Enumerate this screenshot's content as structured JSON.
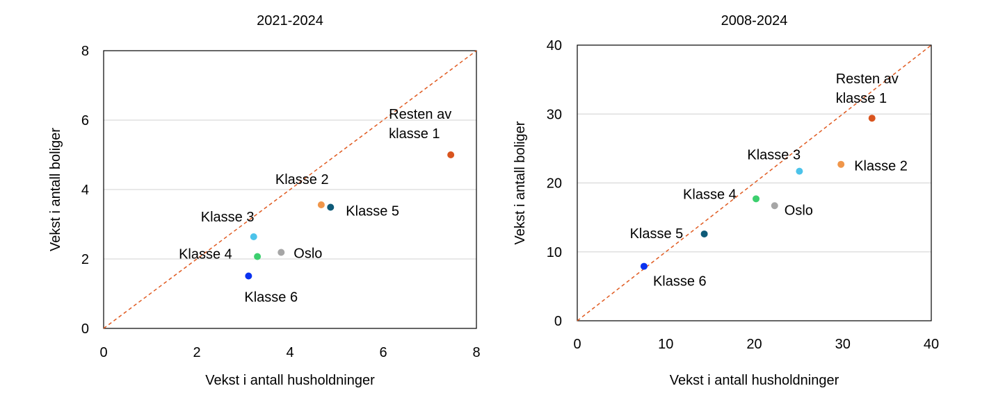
{
  "chart_data": [
    {
      "type": "scatter",
      "title": "2021-2024",
      "xlabel": "Vekst i antall husholdninger",
      "ylabel": "Vekst i antall boliger",
      "xlim": [
        0,
        8
      ],
      "ylim": [
        0,
        8
      ],
      "xticks": [
        0,
        2,
        4,
        6,
        8
      ],
      "yticks": [
        0,
        2,
        4,
        6,
        8
      ],
      "grid": "horizontal",
      "reference_line": "45-degree dashed (y = x)",
      "points": [
        {
          "label": "Resten av klasse 1",
          "label_lines": [
            "Resten av",
            "klasse 1"
          ],
          "x": 7.45,
          "y": 5.0,
          "color": "#d9541e",
          "label_pos": "above-left"
        },
        {
          "label": "Klasse 2",
          "label_lines": [
            "Klasse 2"
          ],
          "x": 4.67,
          "y": 3.56,
          "color": "#f0964a",
          "label_pos": "above-left"
        },
        {
          "label": "Klasse 5",
          "label_lines": [
            "Klasse 5"
          ],
          "x": 4.87,
          "y": 3.49,
          "color": "#0e5a78",
          "label_pos": "right"
        },
        {
          "label": "Klasse 3",
          "label_lines": [
            "Klasse 3"
          ],
          "x": 3.22,
          "y": 2.64,
          "color": "#4cc3ea",
          "label_pos": "above-left"
        },
        {
          "label": "Oslo",
          "label_lines": [
            "Oslo"
          ],
          "x": 3.81,
          "y": 2.19,
          "color": "#a6a6a6",
          "label_pos": "right"
        },
        {
          "label": "Klasse 4",
          "label_lines": [
            "Klasse 4"
          ],
          "x": 3.3,
          "y": 2.07,
          "color": "#3ccf6e",
          "label_pos": "left"
        },
        {
          "label": "Klasse 6",
          "label_lines": [
            "Klasse 6"
          ],
          "x": 3.11,
          "y": 1.51,
          "color": "#0a32f0",
          "label_pos": "below-right"
        }
      ]
    },
    {
      "type": "scatter",
      "title": "2008-2024",
      "xlabel": "Vekst i antall husholdninger",
      "ylabel": "Vekst i antall boliger",
      "xlim": [
        0,
        40
      ],
      "ylim": [
        0,
        40
      ],
      "xticks": [
        0,
        10,
        20,
        30,
        40
      ],
      "yticks": [
        0,
        10,
        20,
        30,
        40
      ],
      "grid": "horizontal",
      "reference_line": "45-degree dashed (y = x)",
      "points": [
        {
          "label": "Resten av klasse 1",
          "label_lines": [
            "Resten av",
            "klasse 1"
          ],
          "x": 33.3,
          "y": 29.4,
          "color": "#d9541e",
          "label_pos": "above-left"
        },
        {
          "label": "Klasse 2",
          "label_lines": [
            "Klasse 2"
          ],
          "x": 29.8,
          "y": 22.7,
          "color": "#f0964a",
          "label_pos": "right"
        },
        {
          "label": "Klasse 3",
          "label_lines": [
            "Klasse 3"
          ],
          "x": 25.1,
          "y": 21.7,
          "color": "#4cc3ea",
          "label_pos": "above-left"
        },
        {
          "label": "Klasse 4",
          "label_lines": [
            "Klasse 4"
          ],
          "x": 20.2,
          "y": 17.7,
          "color": "#3ccf6e",
          "label_pos": "left"
        },
        {
          "label": "Oslo",
          "label_lines": [
            "Oslo"
          ],
          "x": 22.3,
          "y": 16.7,
          "color": "#a6a6a6",
          "label_pos": "below-right"
        },
        {
          "label": "Klasse 5",
          "label_lines": [
            "Klasse 5"
          ],
          "x": 14.35,
          "y": 12.6,
          "color": "#0e5a78",
          "label_pos": "left"
        },
        {
          "label": "Klasse 6",
          "label_lines": [
            "Klasse 6"
          ],
          "x": 7.54,
          "y": 7.9,
          "color": "#0a32f0",
          "label_pos": "below-right"
        }
      ]
    }
  ]
}
